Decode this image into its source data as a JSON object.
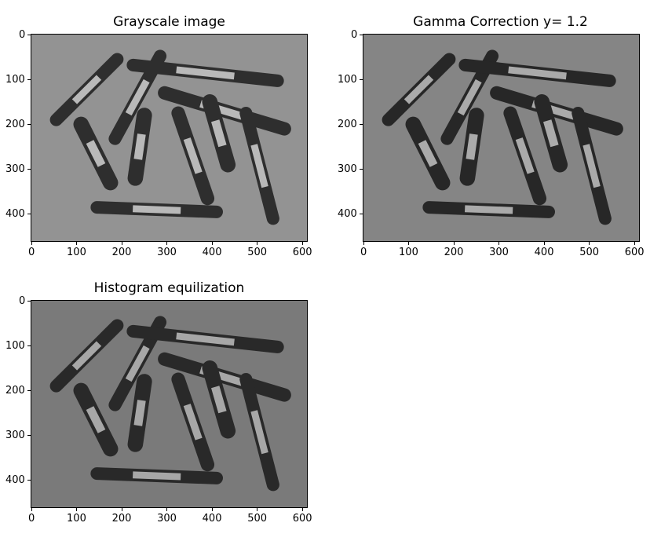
{
  "figure": {
    "panels": [
      {
        "title": "Grayscale image",
        "variant": "gray",
        "xticks": [
          "0",
          "100",
          "200",
          "300",
          "400",
          "500",
          "600"
        ],
        "yticks": [
          "0",
          "100",
          "200",
          "300",
          "400"
        ]
      },
      {
        "title": "Gamma Correction y= 1.2",
        "variant": "gamma",
        "xticks": [
          "0",
          "100",
          "200",
          "300",
          "400",
          "500",
          "600"
        ],
        "yticks": [
          "0",
          "100",
          "200",
          "300",
          "400"
        ]
      },
      {
        "title": "Histogram equilization",
        "variant": "hist",
        "xticks": [
          "0",
          "100",
          "200",
          "300",
          "400",
          "500",
          "600"
        ],
        "yticks": [
          "0",
          "100",
          "200",
          "300",
          "400"
        ]
      }
    ],
    "image": {
      "subject": "markers scattered on a table",
      "width_units": 610,
      "height_units": 460,
      "colors": {
        "gray": {
          "bg": "#939393",
          "dark": "#2e2e2e",
          "label": "#b9b9b9"
        },
        "gamma": {
          "bg": "#858585",
          "dark": "#272727",
          "label": "#aaaaaa"
        },
        "hist": {
          "bg": "#7a7a7a",
          "dark": "#292929",
          "label": "#a7a7a7"
        }
      }
    }
  }
}
